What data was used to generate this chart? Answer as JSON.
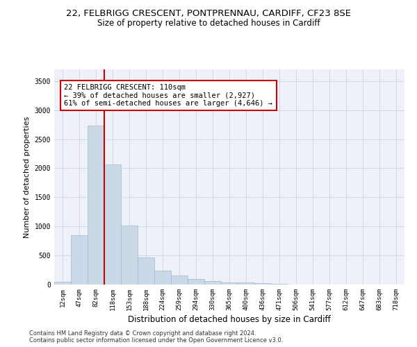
{
  "title_line1": "22, FELBRIGG CRESCENT, PONTPRENNAU, CARDIFF, CF23 8SE",
  "title_line2": "Size of property relative to detached houses in Cardiff",
  "xlabel": "Distribution of detached houses by size in Cardiff",
  "ylabel": "Number of detached properties",
  "categories": [
    "12sqm",
    "47sqm",
    "82sqm",
    "118sqm",
    "153sqm",
    "188sqm",
    "224sqm",
    "259sqm",
    "294sqm",
    "330sqm",
    "365sqm",
    "400sqm",
    "436sqm",
    "471sqm",
    "506sqm",
    "541sqm",
    "577sqm",
    "612sqm",
    "647sqm",
    "683sqm",
    "718sqm"
  ],
  "bar_values": [
    50,
    850,
    2730,
    2060,
    1020,
    460,
    240,
    155,
    100,
    60,
    40,
    30,
    20,
    10,
    5,
    2,
    2,
    2,
    2,
    1,
    1
  ],
  "bar_color": "#c9d9e8",
  "bar_edgecolor": "#a0b8d0",
  "vline_color": "#cc0000",
  "vline_x_idx": 2,
  "annotation_text": "22 FELBRIGG CRESCENT: 110sqm\n← 39% of detached houses are smaller (2,927)\n61% of semi-detached houses are larger (4,646) →",
  "annotation_box_edgecolor": "#cc0000",
  "ylim": [
    0,
    3700
  ],
  "yticks": [
    0,
    500,
    1000,
    1500,
    2000,
    2500,
    3000,
    3500
  ],
  "grid_color": "#d0d8e8",
  "background_color": "#eef2f8",
  "footer_line1": "Contains HM Land Registry data © Crown copyright and database right 2024.",
  "footer_line2": "Contains public sector information licensed under the Open Government Licence v3.0.",
  "title1_fontsize": 9.5,
  "title2_fontsize": 8.5,
  "xlabel_fontsize": 8.5,
  "ylabel_fontsize": 8,
  "tick_fontsize": 6.5,
  "annotation_fontsize": 7.5,
  "footer_fontsize": 6
}
